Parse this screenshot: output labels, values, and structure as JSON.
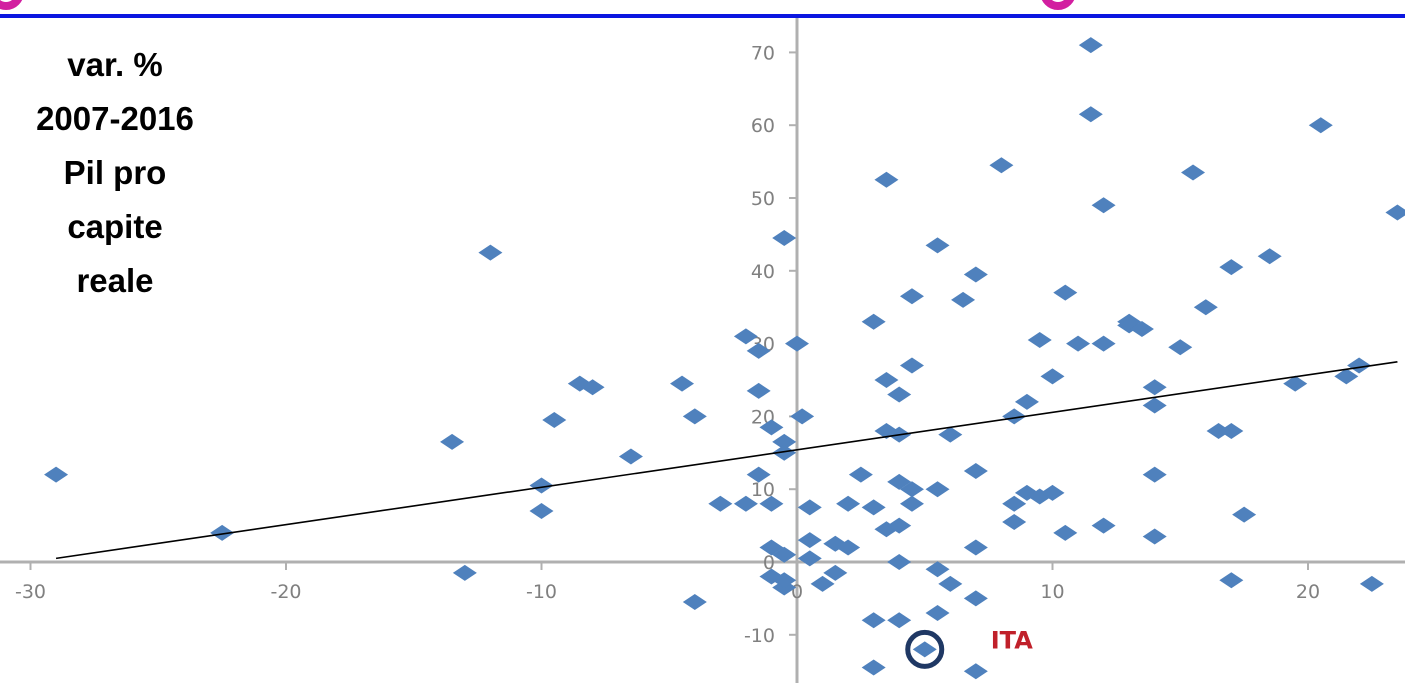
{
  "side_label": {
    "lines": [
      "var. %",
      "2007-2016",
      "Pil pro",
      "capite",
      "reale"
    ]
  },
  "colors": {
    "point": "#4f81bd",
    "axis": "#b0b0b0",
    "trend": "#000000",
    "top_rule": "#0b16e0",
    "top_marks": "#d21fa0",
    "highlight_ring": "#1f3864",
    "highlight_text": "#c0202a"
  },
  "chart_data": {
    "type": "scatter",
    "xlim": [
      -30,
      23
    ],
    "ylim": [
      -15,
      72
    ],
    "x_ticks": [
      -30,
      -20,
      -10,
      0,
      10,
      20
    ],
    "x_tick_labels": [
      "-30",
      "-20",
      "-10",
      "0",
      "10",
      "20"
    ],
    "y_ticks": [
      -10,
      0,
      10,
      20,
      30,
      40,
      50,
      60,
      70
    ],
    "y_tick_labels": [
      "-10",
      "0",
      "10",
      "20",
      "30",
      "40",
      "50",
      "60",
      "70"
    ],
    "grid": false,
    "trendline": {
      "x": [
        -29,
        23.5
      ],
      "y": [
        0.5,
        27.5
      ]
    },
    "highlight": {
      "label": "ITA",
      "x": 5,
      "y": -12
    },
    "points": [
      [
        -29,
        12
      ],
      [
        -22.5,
        4
      ],
      [
        -13.5,
        16.5
      ],
      [
        -13,
        -1.5
      ],
      [
        -12,
        42.5
      ],
      [
        -10,
        10.5
      ],
      [
        -10,
        7
      ],
      [
        -9.5,
        19.5
      ],
      [
        -8.5,
        24.5
      ],
      [
        -8,
        24
      ],
      [
        -6.5,
        14.5
      ],
      [
        -4.5,
        24.5
      ],
      [
        -4,
        20
      ],
      [
        -4,
        -5.5
      ],
      [
        -3,
        8
      ],
      [
        -2,
        8
      ],
      [
        -2,
        31
      ],
      [
        -1.5,
        29
      ],
      [
        -1.5,
        23.5
      ],
      [
        -1.5,
        12
      ],
      [
        -1,
        8
      ],
      [
        -1,
        2
      ],
      [
        -1,
        18.5
      ],
      [
        -1,
        -2
      ],
      [
        -0.5,
        44.5
      ],
      [
        -0.5,
        16.5
      ],
      [
        -0.5,
        15
      ],
      [
        -0.5,
        1
      ],
      [
        -0.5,
        -3.5
      ],
      [
        -0.5,
        -2.5
      ],
      [
        0,
        30
      ],
      [
        0.2,
        20
      ],
      [
        0.5,
        7.5
      ],
      [
        0.5,
        3
      ],
      [
        0.5,
        0.5
      ],
      [
        1,
        -3
      ],
      [
        1.5,
        2.5
      ],
      [
        1.5,
        -1.5
      ],
      [
        2,
        8
      ],
      [
        2,
        2
      ],
      [
        2.5,
        12
      ],
      [
        3,
        33
      ],
      [
        3,
        7.5
      ],
      [
        3,
        -8
      ],
      [
        3,
        -14.5
      ],
      [
        3.5,
        52.5
      ],
      [
        3.5,
        25
      ],
      [
        3.5,
        18
      ],
      [
        3.5,
        4.5
      ],
      [
        4,
        23
      ],
      [
        4,
        17.5
      ],
      [
        4,
        11
      ],
      [
        4,
        5
      ],
      [
        4,
        0
      ],
      [
        4,
        -8
      ],
      [
        4.5,
        36.5
      ],
      [
        4.5,
        27
      ],
      [
        4.5,
        10
      ],
      [
        4.5,
        8
      ],
      [
        5.5,
        43.5
      ],
      [
        5.5,
        10
      ],
      [
        5.5,
        -1
      ],
      [
        5.5,
        -7
      ],
      [
        6,
        17.5
      ],
      [
        6,
        -3
      ],
      [
        6.5,
        36
      ],
      [
        7,
        39.5
      ],
      [
        7,
        12.5
      ],
      [
        7,
        2
      ],
      [
        7,
        -5
      ],
      [
        7,
        -15
      ],
      [
        8,
        54.5
      ],
      [
        8.5,
        20
      ],
      [
        8.5,
        8
      ],
      [
        8.5,
        5.5
      ],
      [
        9,
        9.5
      ],
      [
        9,
        22
      ],
      [
        9.5,
        30.5
      ],
      [
        9.5,
        9
      ],
      [
        10,
        25.5
      ],
      [
        10,
        9.5
      ],
      [
        10.5,
        37
      ],
      [
        10.5,
        4
      ],
      [
        11,
        30
      ],
      [
        11.5,
        71
      ],
      [
        11.5,
        61.5
      ],
      [
        12,
        30
      ],
      [
        12,
        49
      ],
      [
        12,
        5
      ],
      [
        13,
        33
      ],
      [
        13,
        32.5
      ],
      [
        13.5,
        32
      ],
      [
        14,
        12
      ],
      [
        14,
        24
      ],
      [
        14,
        21.5
      ],
      [
        14,
        3.5
      ],
      [
        15,
        29.5
      ],
      [
        15.5,
        53.5
      ],
      [
        16,
        35
      ],
      [
        16.5,
        18
      ],
      [
        17,
        18
      ],
      [
        17,
        40.5
      ],
      [
        17,
        -2.5
      ],
      [
        17.5,
        6.5
      ],
      [
        18.5,
        42
      ],
      [
        19.5,
        24.5
      ],
      [
        20.5,
        60
      ],
      [
        21.5,
        25.5
      ],
      [
        22,
        27
      ],
      [
        22.5,
        -3
      ],
      [
        23.5,
        48
      ]
    ]
  }
}
